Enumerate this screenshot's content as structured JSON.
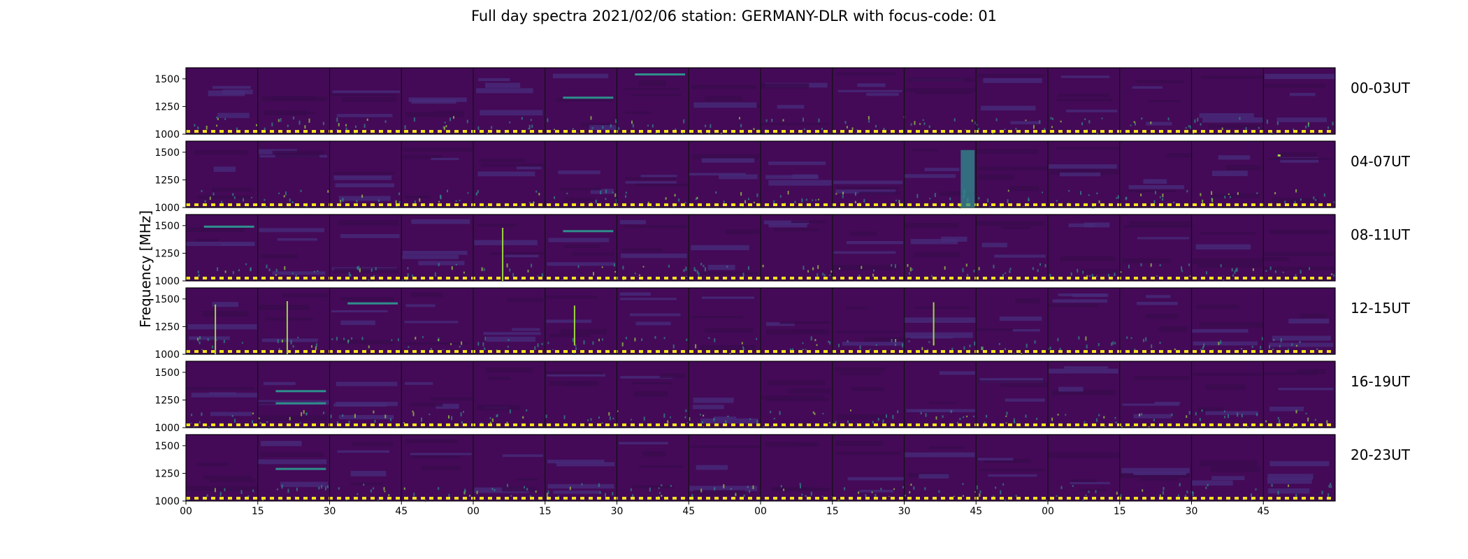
{
  "title": "Full day spectra 2021/02/06 station: GERMANY-DLR with focus-code: 01",
  "colors": {
    "background": "#440a57",
    "dark_band": "#3a0a4e",
    "light_band": "#472a7a",
    "teal_feature": "#2f8f8c",
    "bright_feature": "#9cd83f",
    "yellow": "#f2e21a",
    "separator": "#111111"
  },
  "chart_data": {
    "type": "heatmap",
    "ylabel": "Frequency [MHz]",
    "ylim": [
      1000,
      1600
    ],
    "yticks": [
      1000,
      1250,
      1500
    ],
    "panels_per_row": 16,
    "minutes_per_panel": 15,
    "xticks": [
      "00",
      "15",
      "30",
      "45",
      "00",
      "15",
      "30",
      "45",
      "00",
      "15",
      "30",
      "45",
      "00",
      "15",
      "30",
      "45"
    ],
    "rows": [
      {
        "label": "00-03UT"
      },
      {
        "label": "04-07UT"
      },
      {
        "label": "08-11UT"
      },
      {
        "label": "12-15UT"
      },
      {
        "label": "16-19UT"
      },
      {
        "label": "20-23UT"
      }
    ],
    "features": [
      {
        "row": 0,
        "panel": 6,
        "type": "hline",
        "freq": 1540
      },
      {
        "row": 0,
        "panel": 5,
        "type": "hline",
        "freq": 1330
      },
      {
        "row": 1,
        "panel": 10,
        "type": "block",
        "freq_low": 1000,
        "freq_high": 1520
      },
      {
        "row": 1,
        "panel": 15,
        "type": "dot",
        "freq": 1480
      },
      {
        "row": 2,
        "panel": 0,
        "type": "hline",
        "freq": 1490
      },
      {
        "row": 2,
        "panel": 4,
        "type": "burst",
        "freq_low": 1000,
        "freq_high": 1480
      },
      {
        "row": 2,
        "panel": 5,
        "type": "hline",
        "freq": 1450
      },
      {
        "row": 3,
        "panel": 0,
        "type": "burst",
        "freq_low": 1000,
        "freq_high": 1450
      },
      {
        "row": 3,
        "panel": 1,
        "type": "burst",
        "freq_low": 1000,
        "freq_high": 1480
      },
      {
        "row": 3,
        "panel": 2,
        "type": "hline",
        "freq": 1460
      },
      {
        "row": 3,
        "panel": 5,
        "type": "burst",
        "freq_low": 1080,
        "freq_high": 1440
      },
      {
        "row": 3,
        "panel": 10,
        "type": "burst",
        "freq_low": 1080,
        "freq_high": 1470
      },
      {
        "row": 4,
        "panel": 1,
        "type": "hline",
        "freq": 1220
      },
      {
        "row": 4,
        "panel": 1,
        "type": "hline",
        "freq": 1330
      },
      {
        "row": 5,
        "panel": 1,
        "type": "hline",
        "freq": 1290
      }
    ]
  }
}
